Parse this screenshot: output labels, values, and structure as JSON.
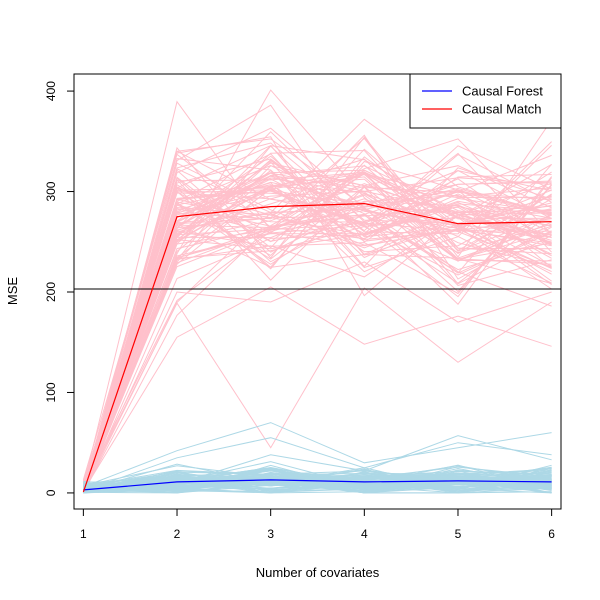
{
  "chart_data": {
    "type": "line",
    "xlabel": "Number of covariates",
    "ylabel": "MSE",
    "x": [
      1,
      2,
      3,
      4,
      5,
      6
    ],
    "xlim": [
      0.9,
      6.1
    ],
    "ylim": [
      -16,
      417
    ],
    "xticks": [
      1,
      2,
      3,
      4,
      5,
      6
    ],
    "yticks": [
      0,
      100,
      200,
      300,
      400
    ],
    "legend_position": "top-right",
    "hline": {
      "y": 203,
      "color": "#000000"
    },
    "series": [
      {
        "name": "Causal Forest",
        "color": "#0000ff",
        "values": [
          3,
          11,
          13,
          11,
          12,
          11
        ]
      },
      {
        "name": "Causal Match",
        "color": "#ff0000",
        "values": [
          1,
          275,
          285,
          288,
          268,
          270
        ]
      }
    ],
    "background_lines": {
      "count": 100,
      "forest": {
        "color": "#add8e6",
        "mean": [
          3,
          11,
          13,
          11,
          12,
          11
        ],
        "spread": [
          4,
          7,
          8,
          7,
          8,
          7
        ],
        "outliers": [
          [
            4,
            9,
            38,
            22,
            57,
            33
          ],
          [
            6,
            42,
            70,
            30,
            45,
            60
          ],
          [
            2,
            35,
            55,
            25,
            50,
            38
          ]
        ]
      },
      "match": {
        "color": "#ffc0cb",
        "mean": [
          1,
          275,
          285,
          288,
          268,
          270
        ],
        "spread": [
          8,
          40,
          40,
          38,
          40,
          40
        ],
        "outliers": [
          [
            2,
            155,
            205,
            148,
            176,
            146
          ],
          [
            3,
            189,
            45,
            204,
            130,
            190
          ],
          [
            1,
            238,
            401,
            294,
            220,
            186
          ],
          [
            1,
            200,
            190,
            230,
            170,
            200
          ]
        ]
      }
    }
  }
}
